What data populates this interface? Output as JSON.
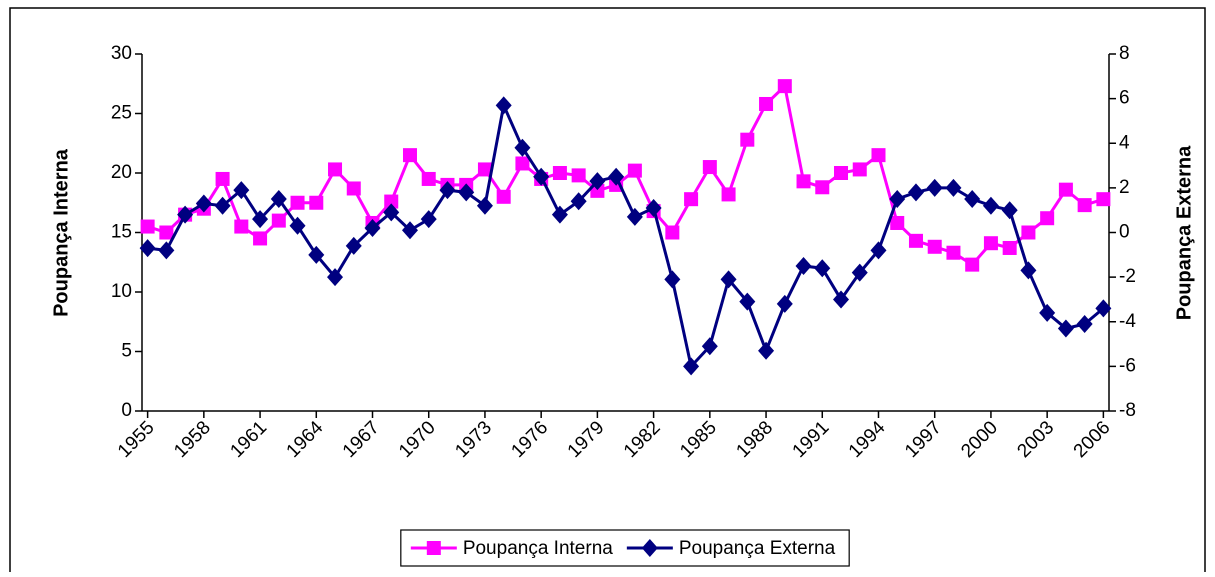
{
  "chart_data": {
    "type": "line",
    "ylabel": "Poupança Interna",
    "y2label": "Poupança Externa",
    "x": [
      1955,
      1956,
      1957,
      1958,
      1959,
      1960,
      1961,
      1962,
      1963,
      1964,
      1965,
      1966,
      1967,
      1968,
      1969,
      1970,
      1971,
      1972,
      1973,
      1974,
      1975,
      1976,
      1977,
      1978,
      1979,
      1980,
      1981,
      1982,
      1983,
      1984,
      1985,
      1986,
      1987,
      1988,
      1989,
      1990,
      1991,
      1992,
      1993,
      1994,
      1995,
      1996,
      1997,
      1998,
      1999,
      2000,
      2001,
      2002,
      2003,
      2004,
      2005,
      2006
    ],
    "xlim": [
      1954.7,
      2006.3
    ],
    "xticks": [
      1955,
      1958,
      1961,
      1964,
      1967,
      1970,
      1973,
      1976,
      1979,
      1982,
      1985,
      1988,
      1991,
      1994,
      1997,
      2000,
      2003,
      2006
    ],
    "ylim": [
      0,
      30
    ],
    "yticks": [
      0,
      5,
      10,
      15,
      20,
      25,
      30
    ],
    "y2lim": [
      -8,
      8
    ],
    "y2ticks": [
      -8,
      -6,
      -4,
      -2,
      0,
      2,
      4,
      6,
      8
    ],
    "legend": "bottom",
    "series": [
      {
        "name": "Poupança Interna",
        "color": "#ff00ff",
        "marker": "square",
        "values": [
          15.5,
          15.0,
          16.5,
          17.0,
          19.5,
          15.5,
          14.5,
          16.0,
          17.5,
          17.5,
          20.3,
          18.7,
          15.8,
          17.6,
          21.5,
          19.5,
          19.0,
          19.0,
          20.3,
          18.0,
          20.8,
          19.5,
          20.0,
          19.8,
          18.5,
          19.0,
          20.2,
          16.8,
          15.0,
          17.8,
          20.5,
          18.2,
          22.8,
          25.8,
          27.3,
          19.3,
          18.8,
          20.0,
          20.3,
          21.5,
          15.8,
          14.3,
          13.8,
          13.3,
          12.3,
          14.1,
          13.7,
          15.0,
          16.2,
          18.6,
          17.3,
          17.8
        ]
      },
      {
        "name": "Poupança Externa",
        "color": "#000080",
        "marker": "diamond",
        "axis": "y2",
        "values": [
          -0.7,
          -0.8,
          0.8,
          1.3,
          1.2,
          1.9,
          0.6,
          1.5,
          0.3,
          -1.0,
          -2.0,
          -0.6,
          0.2,
          0.9,
          0.1,
          0.6,
          1.9,
          1.8,
          1.2,
          5.7,
          3.8,
          2.5,
          0.8,
          1.4,
          2.3,
          2.5,
          0.7,
          1.1,
          -2.1,
          -6.0,
          -5.1,
          -2.1,
          -3.1,
          -5.3,
          -3.2,
          -1.5,
          -1.6,
          -3.0,
          -1.8,
          -0.8,
          1.5,
          1.8,
          2.0,
          2.0,
          1.5,
          1.2,
          1.0,
          -1.7,
          -3.6,
          -4.3,
          -4.1,
          -3.4
        ]
      }
    ]
  }
}
